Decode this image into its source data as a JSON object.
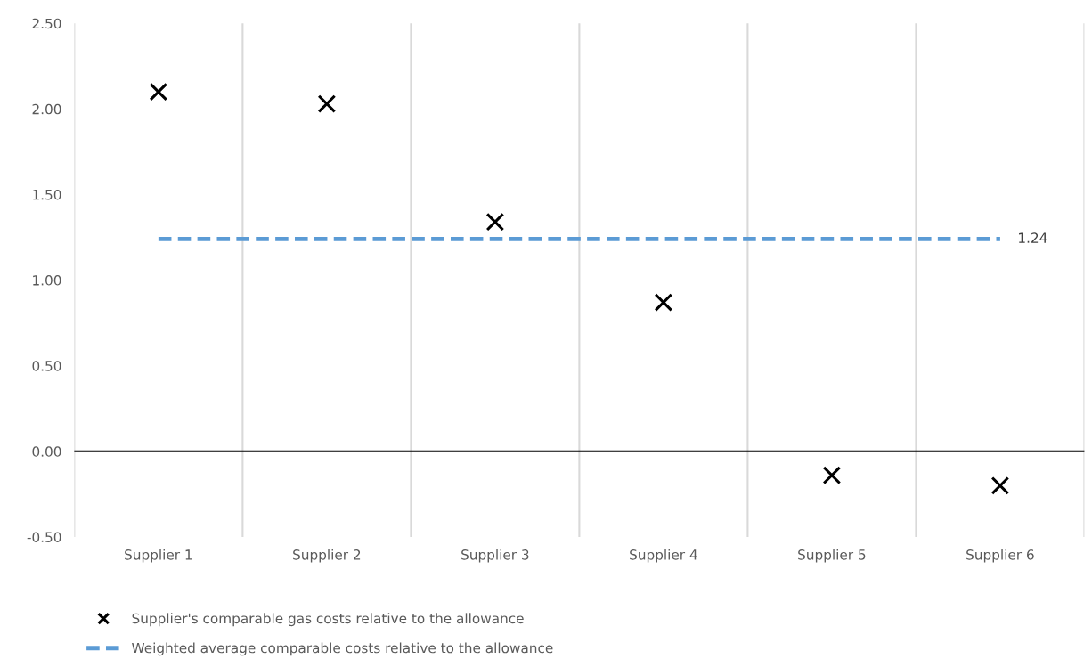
{
  "chart_data": {
    "type": "scatter",
    "categories": [
      "Supplier 1",
      "Supplier 2",
      "Supplier 3",
      "Supplier 4",
      "Supplier 5",
      "Supplier 6"
    ],
    "series": [
      {
        "name": "Supplier's comparable gas costs relative to the allowance",
        "color": "#000000",
        "marker": "cross",
        "values": [
          2.1,
          2.03,
          1.34,
          0.87,
          -0.14,
          -0.2
        ]
      },
      {
        "name": "Weighted average comparable costs relative to the allowance",
        "type": "line",
        "color": "#5b9bd5",
        "line_style": "dashed",
        "marker": "none",
        "values": [
          1.24,
          1.24,
          1.24,
          1.24,
          1.24,
          1.24
        ],
        "value_labels": [
          null,
          null,
          null,
          null,
          null,
          "1.24"
        ]
      }
    ],
    "ylim": [
      -0.5,
      2.5
    ],
    "yticks": [
      {
        "value": -0.5,
        "label": "-0.50"
      },
      {
        "value": 0,
        "label": "0.00"
      },
      {
        "value": 0.5,
        "label": "0.50"
      },
      {
        "value": 1,
        "label": "1.00"
      },
      {
        "value": 1.5,
        "label": "1.50"
      },
      {
        "value": 2,
        "label": "2.00"
      },
      {
        "value": 2.5,
        "label": "2.50"
      }
    ],
    "ref_lines": [
      {
        "axis": "y",
        "value": 0,
        "color": "#000000",
        "line_style": "solid"
      }
    ],
    "grid": "x",
    "legend": "bottom"
  }
}
